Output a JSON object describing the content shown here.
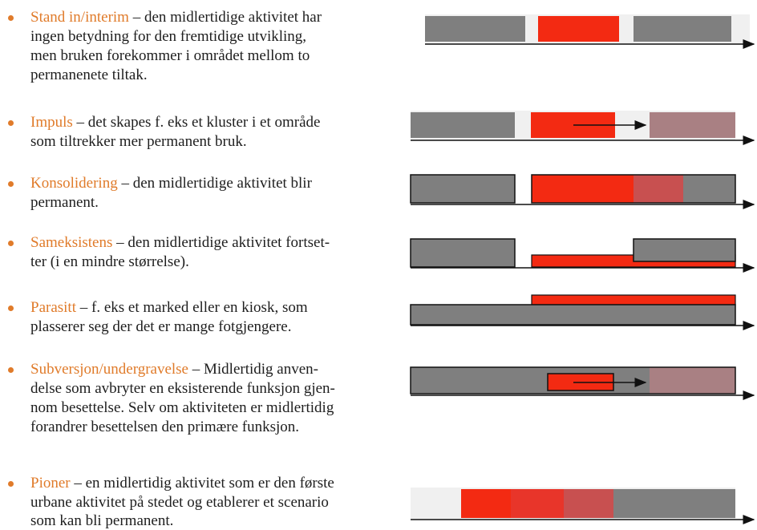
{
  "items": [
    {
      "term": "Stand in/interim",
      "lines": [
        "– den midlertidige aktivitet har",
        "ingen betydning for den fremtidige utvikling,",
        "men bruken forekommer i området mellom to",
        "permanenete tiltak."
      ]
    },
    {
      "term": "Impuls",
      "lines": [
        "– det skapes f. eks et kluster i et område",
        "som tiltrekker mer permanent bruk."
      ]
    },
    {
      "term": "Konsolidering",
      "lines": [
        "– den midlertidige aktivitet blir",
        "permanent."
      ]
    },
    {
      "term": "Sameksistens",
      "lines": [
        "– den midlertidige aktivitet fortset-",
        "ter (i en mindre størrelse)."
      ]
    },
    {
      "term": "Parasitt",
      "lines": [
        "– f. eks et marked eller en kiosk, som",
        "plasserer seg der det er mange fotgjengere."
      ]
    },
    {
      "term": "Subversjon/undergravelse",
      "lines": [
        "– Midlertidig anven-",
        "delse som avbryter en eksisterende funksjon gjen-",
        "nom besettelse. Selv om aktiviteten er midlertidig",
        "forandrer besettelsen den primære funksjon."
      ]
    },
    {
      "term": "Pioner",
      "lines": [
        "– en midlertidig aktivitet som er den første",
        "urbane aktivitet på stedet og etablerer et scenario",
        "som kan bli permanent."
      ]
    }
  ]
}
